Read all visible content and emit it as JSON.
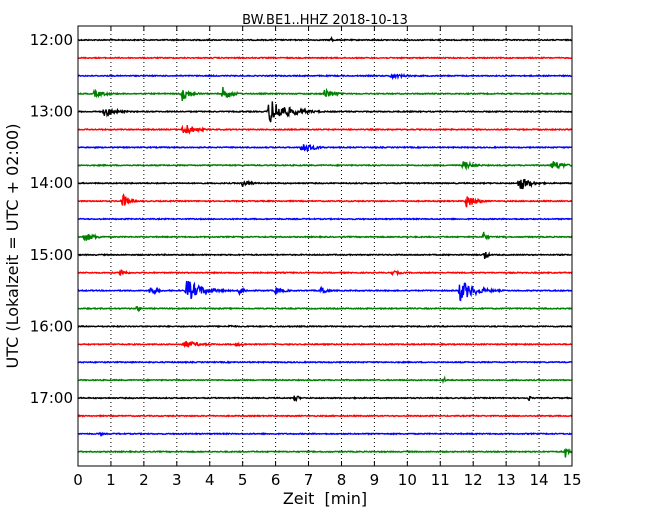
{
  "chart_data": {
    "type": "line",
    "subtype": "helicorder",
    "title": "BW.BE1..HHZ 2018-10-13",
    "xlabel": "Zeit  [min]",
    "ylabel": "UTC (Lokalzeit = UTC + 02:00)",
    "xlim": [
      0,
      15
    ],
    "x_ticks": [
      "0",
      "1",
      "2",
      "3",
      "4",
      "5",
      "6",
      "7",
      "8",
      "9",
      "10",
      "11",
      "12",
      "13",
      "14",
      "15"
    ],
    "y_tick_labels": [
      "12:00",
      "13:00",
      "14:00",
      "15:00",
      "16:00",
      "17:00"
    ],
    "rows_per_hour": 4,
    "trace_minutes": 15,
    "grid": "vertical-dotted",
    "colors": [
      "#000000",
      "#ff0000",
      "#0000ff",
      "#008000"
    ],
    "traces": [
      {
        "start": "12:00",
        "events": [
          [
            7.7,
            0.35,
            0.06
          ]
        ]
      },
      {
        "start": "12:15",
        "events": []
      },
      {
        "start": "12:30",
        "events": [
          [
            9.5,
            0.25,
            0.5
          ]
        ]
      },
      {
        "start": "12:45",
        "events": [
          [
            0.5,
            0.35,
            0.4
          ],
          [
            3.15,
            0.8,
            0.25
          ],
          [
            4.4,
            0.7,
            0.25
          ],
          [
            7.5,
            0.6,
            0.25
          ]
        ]
      },
      {
        "start": "13:00",
        "events": [
          [
            0.8,
            0.5,
            0.35
          ],
          [
            5.8,
            1.3,
            0.55
          ]
        ]
      },
      {
        "start": "13:15",
        "events": [
          [
            3.2,
            0.75,
            0.3
          ]
        ]
      },
      {
        "start": "13:30",
        "events": [
          [
            6.8,
            0.7,
            0.3
          ]
        ]
      },
      {
        "start": "13:45",
        "events": [
          [
            11.7,
            0.45,
            0.3
          ],
          [
            14.4,
            0.55,
            0.3
          ]
        ]
      },
      {
        "start": "14:00",
        "events": [
          [
            5.0,
            0.4,
            0.25
          ],
          [
            13.4,
            0.85,
            0.3
          ]
        ]
      },
      {
        "start": "14:15",
        "events": [
          [
            1.35,
            0.8,
            0.2
          ],
          [
            11.8,
            0.8,
            0.25
          ]
        ]
      },
      {
        "start": "14:30",
        "events": []
      },
      {
        "start": "14:45",
        "events": [
          [
            0.2,
            0.5,
            0.3
          ],
          [
            12.3,
            0.65,
            0.1
          ]
        ]
      },
      {
        "start": "15:00",
        "events": [
          [
            12.35,
            0.65,
            0.08
          ]
        ]
      },
      {
        "start": "15:15",
        "events": [
          [
            1.3,
            0.45,
            0.15
          ],
          [
            9.5,
            0.25,
            0.3
          ]
        ]
      },
      {
        "start": "15:30",
        "events": [
          [
            2.2,
            0.5,
            0.2
          ],
          [
            3.3,
            1.15,
            0.45
          ],
          [
            4.9,
            0.5,
            0.15
          ],
          [
            6.0,
            0.4,
            0.25
          ],
          [
            7.4,
            0.65,
            0.12
          ],
          [
            11.6,
            1.1,
            0.45
          ]
        ]
      },
      {
        "start": "15:45",
        "events": [
          [
            1.8,
            0.45,
            0.08
          ]
        ]
      },
      {
        "start": "16:00",
        "events": [
          [
            4.6,
            0.15,
            0.25
          ]
        ]
      },
      {
        "start": "16:15",
        "events": [
          [
            3.2,
            0.4,
            0.5
          ],
          [
            4.8,
            0.2,
            0.3
          ]
        ]
      },
      {
        "start": "16:30",
        "events": []
      },
      {
        "start": "16:45",
        "events": [
          [
            11.1,
            0.35,
            0.08
          ]
        ]
      },
      {
        "start": "17:00",
        "events": [
          [
            6.6,
            0.55,
            0.08
          ],
          [
            13.7,
            0.3,
            0.06
          ]
        ]
      },
      {
        "start": "17:15",
        "events": []
      },
      {
        "start": "17:30",
        "events": [
          [
            0.7,
            0.25,
            0.06
          ]
        ]
      },
      {
        "start": "17:45",
        "events": [
          [
            14.8,
            0.75,
            0.08
          ]
        ]
      }
    ]
  }
}
